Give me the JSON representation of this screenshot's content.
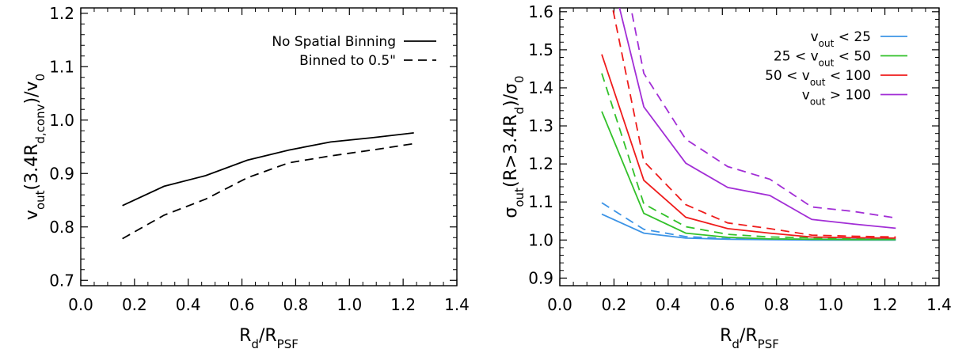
{
  "chart_data": [
    {
      "type": "line",
      "xlabel": {
        "main": "R",
        "sub": "d",
        "mid": "/R",
        "sub2": "PSF"
      },
      "ylabel": {
        "pre": "v",
        "sub": "out",
        "mid1": "(3.4R",
        "sub2": "d,conv",
        "mid2": ")/v",
        "sub3": "0"
      },
      "xlim": [
        0.0,
        1.4
      ],
      "ylim": [
        0.69,
        1.21
      ],
      "xticks": [
        "0.0",
        "0.2",
        "0.4",
        "0.6",
        "0.8",
        "1.0",
        "1.2",
        "1.4"
      ],
      "xtick_values": [
        0.0,
        0.2,
        0.4,
        0.6,
        0.8,
        1.0,
        1.2,
        1.4
      ],
      "yticks": [
        "0.7",
        "0.8",
        "0.9",
        "1.0",
        "1.1",
        "1.2"
      ],
      "ytick_values": [
        0.7,
        0.8,
        0.9,
        1.0,
        1.1,
        1.2
      ],
      "grid": false,
      "legend_position": "top-right",
      "x": [
        0.155,
        0.31,
        0.465,
        0.62,
        0.775,
        0.93,
        1.085,
        1.24
      ],
      "series": [
        {
          "name": "No Spatial Binning",
          "color": "#000000",
          "dash": "solid",
          "values": [
            0.84,
            0.876,
            0.896,
            0.925,
            0.944,
            0.959,
            0.967,
            0.976
          ]
        },
        {
          "name": "Binned to 0.5\"",
          "color": "#000000",
          "dash": "dashed",
          "values": [
            0.778,
            0.822,
            0.852,
            0.892,
            0.92,
            0.933,
            0.944,
            0.956
          ]
        }
      ]
    },
    {
      "type": "line",
      "xlabel": {
        "main": "R",
        "sub": "d",
        "mid": "/R",
        "sub2": "PSF"
      },
      "ylabel": {
        "pre": "σ",
        "sub": "out",
        "mid1": "(R>3.4R",
        "sub2": "d",
        "mid2": ")/σ",
        "sub3": "0"
      },
      "xlim": [
        0.0,
        1.4
      ],
      "ylim": [
        0.88,
        1.61
      ],
      "xticks": [
        "0.0",
        "0.2",
        "0.4",
        "0.6",
        "0.8",
        "1.0",
        "1.2",
        "1.4"
      ],
      "xtick_values": [
        0.0,
        0.2,
        0.4,
        0.6,
        0.8,
        1.0,
        1.2,
        1.4
      ],
      "yticks": [
        "0.9",
        "1.0",
        "1.1",
        "1.2",
        "1.3",
        "1.4",
        "1.5",
        "1.6"
      ],
      "ytick_values": [
        0.9,
        1.0,
        1.1,
        1.2,
        1.3,
        1.4,
        1.5,
        1.6
      ],
      "grid": false,
      "legend_position": "top-right",
      "legend": [
        {
          "pre": "v",
          "sub": "out",
          "post": " < 25",
          "color": "#3d94e6"
        },
        {
          "pre": "25 < v",
          "sub": "out",
          "post": " < 50",
          "color": "#33c12a"
        },
        {
          "pre": "50 < v",
          "sub": "out",
          "post": " < 100",
          "color": "#ef1c1c"
        },
        {
          "pre": "v",
          "sub": "out",
          "post": " > 100",
          "color": "#a22ed6"
        }
      ],
      "x": [
        0.155,
        0.31,
        0.465,
        0.62,
        0.775,
        0.93,
        1.085,
        1.24
      ],
      "series": [
        {
          "color": "#3d94e6",
          "dash": "solid",
          "values": [
            1.068,
            1.018,
            1.005,
            1.002,
            1.001,
            1.0,
            1.0,
            1.0
          ]
        },
        {
          "color": "#3d94e6",
          "dash": "dashed",
          "values": [
            1.098,
            1.028,
            1.009,
            1.004,
            1.003,
            1.002,
            1.002,
            1.002
          ]
        },
        {
          "color": "#33c12a",
          "dash": "solid",
          "values": [
            1.338,
            1.07,
            1.018,
            1.007,
            1.003,
            1.002,
            1.001,
            1.001
          ]
        },
        {
          "color": "#33c12a",
          "dash": "dashed",
          "values": [
            1.438,
            1.095,
            1.035,
            1.015,
            1.008,
            1.006,
            1.003,
            1.003
          ]
        },
        {
          "color": "#ef1c1c",
          "dash": "solid",
          "values": [
            1.488,
            1.157,
            1.06,
            1.03,
            1.018,
            1.008,
            1.006,
            1.005
          ]
        },
        {
          "color": "#ef1c1c",
          "dash": "dashed",
          "values": [
            1.75,
            1.207,
            1.093,
            1.045,
            1.03,
            1.013,
            1.01,
            1.008
          ]
        },
        {
          "color": "#a22ed6",
          "dash": "solid",
          "values": [
            1.8,
            1.35,
            1.202,
            1.138,
            1.117,
            1.054,
            1.042,
            1.031
          ]
        },
        {
          "color": "#a22ed6",
          "dash": "dashed",
          "values": [
            2.0,
            1.438,
            1.265,
            1.193,
            1.16,
            1.087,
            1.075,
            1.058
          ]
        }
      ]
    }
  ]
}
